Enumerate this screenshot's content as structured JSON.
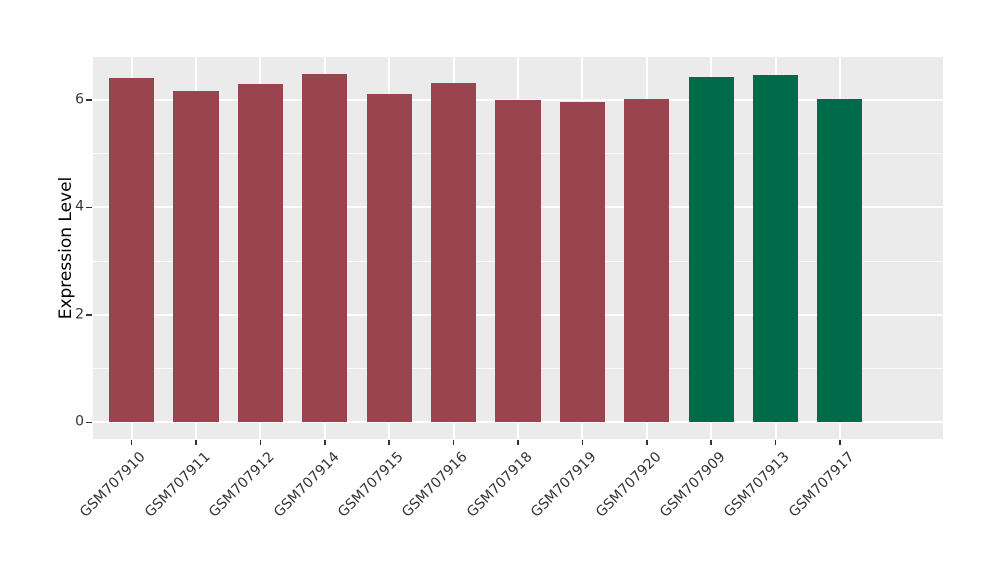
{
  "chart_data": {
    "type": "bar",
    "title": "",
    "xlabel": "",
    "ylabel": "Expression Level",
    "categories": [
      "GSM707910",
      "GSM707911",
      "GSM707912",
      "GSM707914",
      "GSM707915",
      "GSM707916",
      "GSM707918",
      "GSM707919",
      "GSM707920",
      "GSM707909",
      "GSM707913",
      "GSM707917"
    ],
    "values": [
      6.4,
      6.17,
      6.3,
      6.48,
      6.12,
      6.32,
      6.0,
      5.96,
      6.01,
      6.42,
      6.46,
      6.01
    ],
    "bar_colors": [
      "#9A4450",
      "#9A4450",
      "#9A4450",
      "#9A4450",
      "#9A4450",
      "#9A4450",
      "#9A4450",
      "#9A4450",
      "#9A4450",
      "#006B48",
      "#006B48",
      "#006B48"
    ],
    "group_colors": {
      "red_group": "#9A4450",
      "green_group": "#006B48"
    },
    "red_group_categories": [
      "GSM707910",
      "GSM707911",
      "GSM707912",
      "GSM707914",
      "GSM707915",
      "GSM707916",
      "GSM707918",
      "GSM707919",
      "GSM707920"
    ],
    "green_group_categories": [
      "GSM707909",
      "GSM707913",
      "GSM707917"
    ],
    "yticks": [
      0,
      2,
      4,
      6
    ],
    "yticks_minor": [
      1,
      3,
      5
    ],
    "ylim": [
      -0.31,
      6.8
    ],
    "grid": "on",
    "legend_position": "none",
    "panel_background": "#EBEBEB",
    "grid_color": "#FFFFFF",
    "tick_color": "#333333"
  }
}
